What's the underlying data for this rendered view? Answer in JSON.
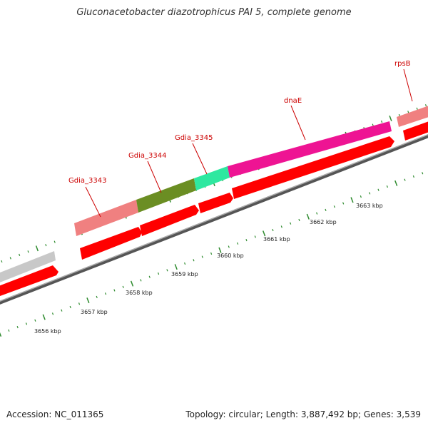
{
  "title": "Gluconacetobacter diazotrophicus PAI 5, complete genome",
  "footer": {
    "accession": "Accession: NC_011365",
    "summary": "Topology: circular; Length: 3,887,492 bp; Genes: 3,539"
  },
  "colors": {
    "cds_arrow": "#ff0000",
    "backbone": "#777777",
    "tick": "#2e8b2e",
    "label": "#cc0000"
  },
  "genes": [
    {
      "name": "",
      "color": "#c8c8c8"
    },
    {
      "name": "Gdia_3343",
      "color": "#f08080"
    },
    {
      "name": "Gdia_3344",
      "color": "#6b8e23"
    },
    {
      "name": "Gdia_3345",
      "color": "#2ee8a0"
    },
    {
      "name": "dnaE",
      "color": "#ee1493"
    },
    {
      "name": "rpsB",
      "color": "#f08080"
    }
  ],
  "kbp_labels": [
    "3656 kbp",
    "3657 kbp",
    "3658 kbp",
    "3659 kbp",
    "3660 kbp",
    "3661 kbp",
    "3662 kbp",
    "3663 kbp"
  ]
}
